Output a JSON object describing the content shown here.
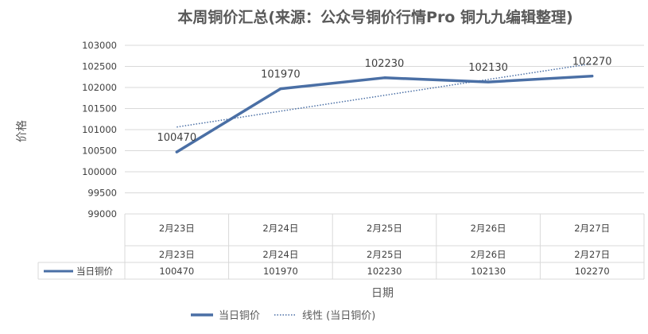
{
  "chart_data": {
    "type": "line",
    "title": "本周铜价汇总(来源：公众号铜价行情Pro 铜九九编辑整理)",
    "xlabel": "日期",
    "ylabel": "价格",
    "categories": [
      "2月23日",
      "2月24日",
      "2月25日",
      "2月26日",
      "2月27日"
    ],
    "ylim": [
      99000,
      103000
    ],
    "ytick_step": 500,
    "yticks": [
      "99000",
      "99500",
      "100000",
      "100500",
      "101000",
      "101500",
      "102000",
      "102500",
      "103000"
    ],
    "grid": true,
    "series": [
      {
        "name": "当日铜价",
        "values": [
          100470,
          101970,
          102230,
          102130,
          102270
        ],
        "labels": [
          "100470",
          "101970",
          "102230",
          "102130",
          "102270"
        ],
        "color": "#4a6fa5"
      }
    ],
    "trendline": {
      "name": "线性 (当日铜价)",
      "color": "#4a6fa5"
    },
    "data_table": {
      "header": [
        "2月23日",
        "2月24日",
        "2月25日",
        "2月26日",
        "2月27日"
      ],
      "row_label": "当日铜价",
      "row_values": [
        "100470",
        "101970",
        "102230",
        "102130",
        "102270"
      ]
    },
    "legend": {
      "position": "bottom",
      "items": [
        "当日铜价",
        "线性 (当日铜价)"
      ]
    }
  }
}
